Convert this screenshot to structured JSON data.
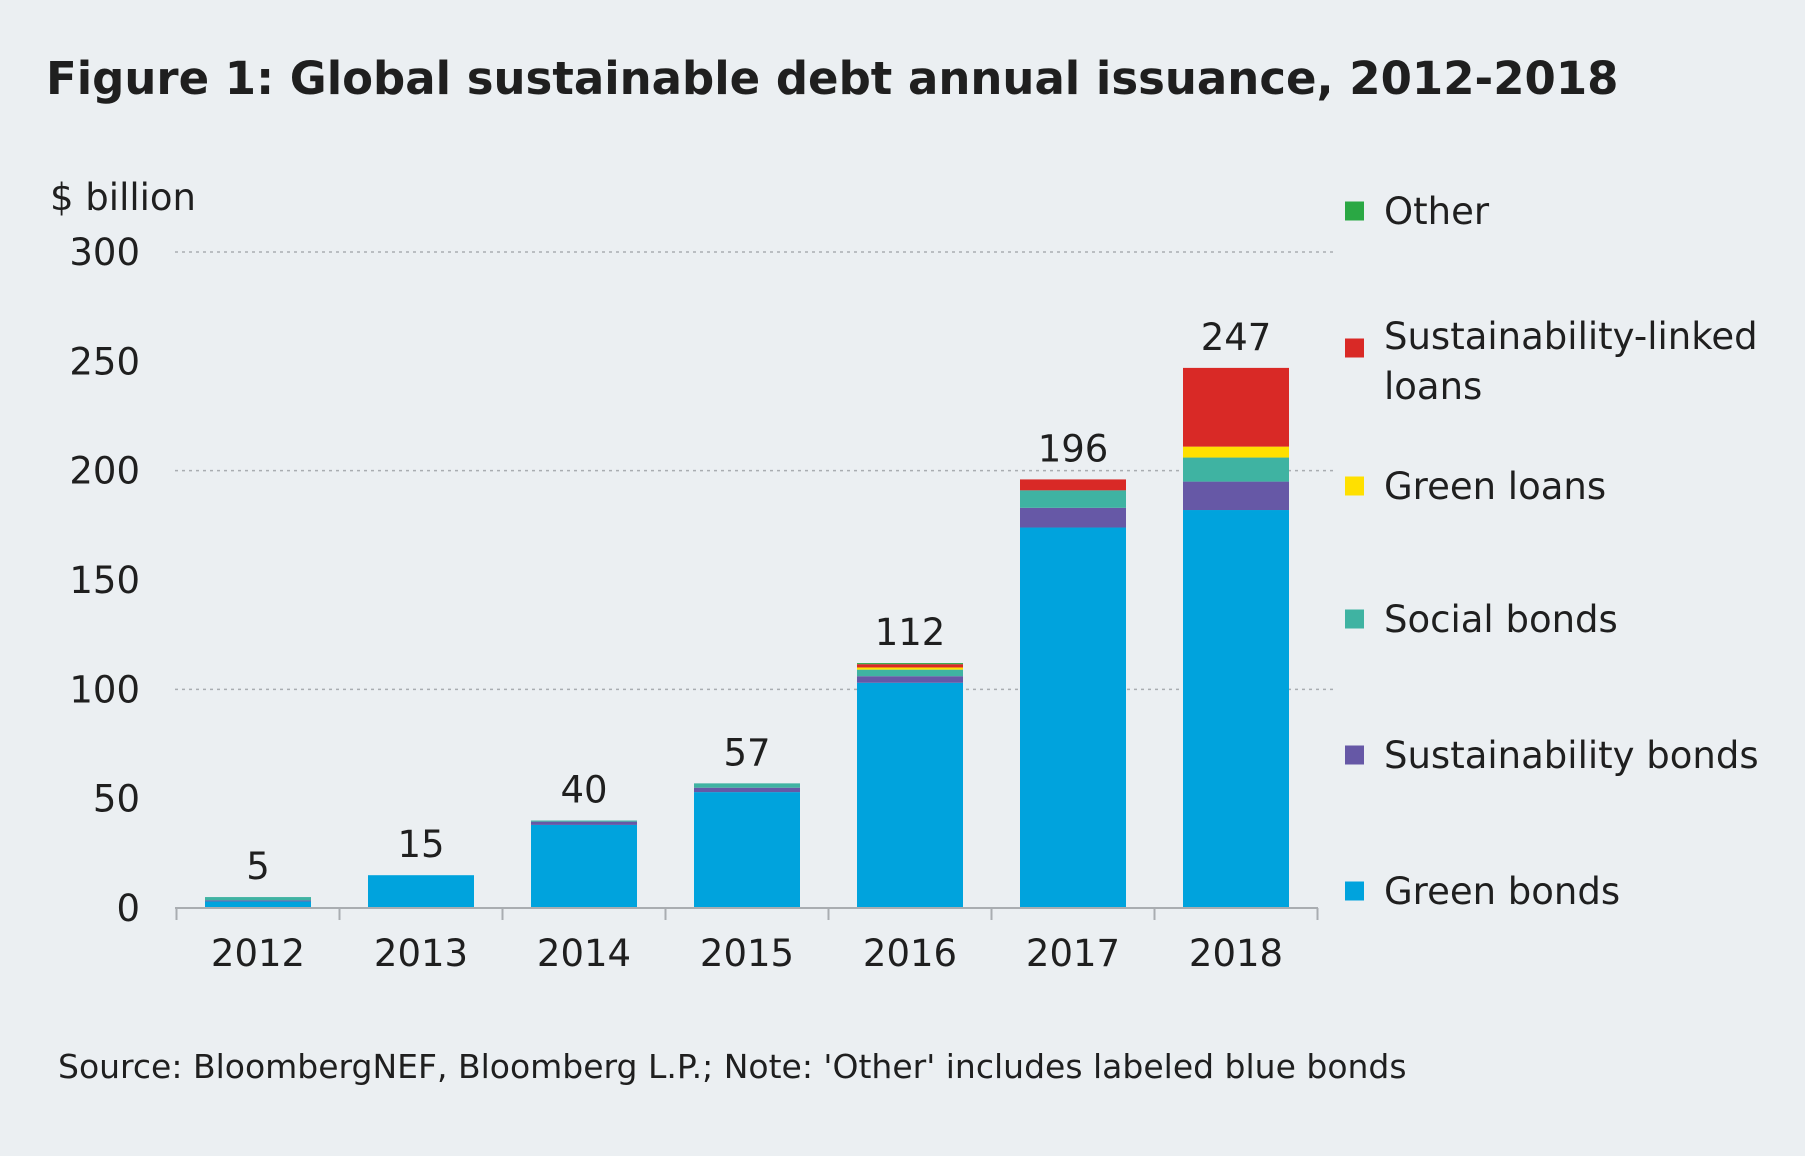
{
  "title": "Figure 1: Global sustainable debt annual issuance, 2012-2018",
  "unit_label": "$ billion",
  "source_note": "Source: BloombergNEF, Bloomberg L.P.; Note: 'Other' includes labeled blue bonds",
  "colors": {
    "background": "#ebeff2",
    "green_bonds": "#00a3dd",
    "sustainability_bonds": "#6658a6",
    "social_bonds": "#3fb3a2",
    "green_loans": "#ffe000",
    "sustainability_linked_loans": "#d92926",
    "other": "#2aa844",
    "grid": "#a9adb1"
  },
  "chart_data": {
    "type": "bar",
    "stacked": true,
    "title": "Figure 1: Global sustainable debt annual issuance, 2012-2018",
    "ylabel": "$ billion",
    "xlabel": "",
    "ylim": [
      0,
      300
    ],
    "yticks": [
      0,
      50,
      100,
      150,
      200,
      250,
      300
    ],
    "grid": true,
    "legend_position": "right",
    "categories": [
      "2012",
      "2013",
      "2014",
      "2015",
      "2016",
      "2017",
      "2018"
    ],
    "totals": [
      5,
      15,
      40,
      57,
      112,
      196,
      247
    ],
    "series": [
      {
        "name": "Green bonds",
        "color": "#00a3dd",
        "values": [
          3,
          15,
          38,
          53,
          103,
          174,
          182
        ]
      },
      {
        "name": "Sustainability bonds",
        "color": "#6658a6",
        "values": [
          0.5,
          0,
          1.5,
          2,
          3,
          9,
          13
        ]
      },
      {
        "name": "Social bonds",
        "color": "#3fb3a2",
        "values": [
          1.5,
          0,
          0.5,
          2,
          3,
          8,
          11
        ]
      },
      {
        "name": "Green loans",
        "color": "#ffe000",
        "values": [
          0,
          0,
          0,
          0,
          1,
          0,
          5
        ]
      },
      {
        "name": "Sustainability-linked loans",
        "color": "#d92926",
        "values": [
          0,
          0,
          0,
          0,
          1.5,
          5,
          36
        ]
      },
      {
        "name": "Other",
        "color": "#2aa844",
        "values": [
          0,
          0,
          0,
          0,
          0.5,
          0,
          0
        ]
      }
    ],
    "legend": [
      {
        "name": "Other",
        "color": "#2aa844"
      },
      {
        "name": "Sustainability-linked loans",
        "color": "#d92926"
      },
      {
        "name": "Green loans",
        "color": "#ffe000"
      },
      {
        "name": "Social bonds",
        "color": "#3fb3a2"
      },
      {
        "name": "Sustainability bonds",
        "color": "#6658a6"
      },
      {
        "name": "Green bonds",
        "color": "#00a3dd"
      }
    ]
  }
}
